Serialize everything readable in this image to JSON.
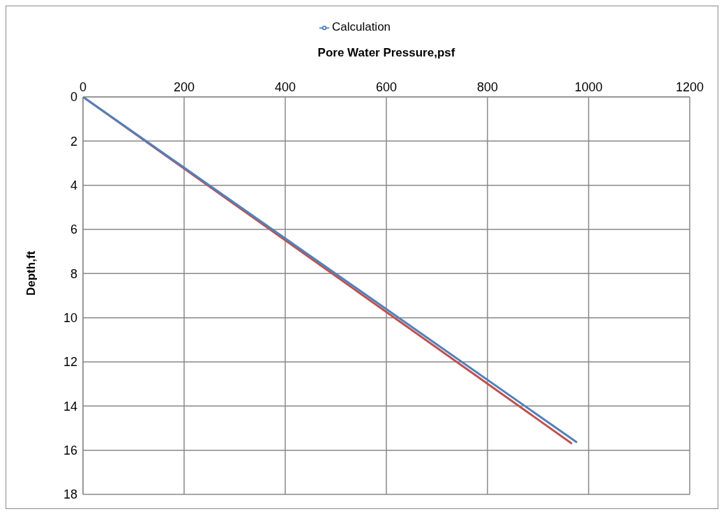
{
  "chart_data": {
    "type": "line",
    "xlabel": "Pore Water Pressure,psf",
    "ylabel": "Depth,ft",
    "series": [
      {
        "color": "#c0504d",
        "x": [
          0,
          967
        ],
        "values": [
          0,
          15.7
        ]
      },
      {
        "name": "Calculation",
        "color": "#4f81bd",
        "x": [
          0,
          977
        ],
        "values": [
          0,
          15.65
        ]
      }
    ],
    "xlim": [
      0,
      1200
    ],
    "xticks": [
      0,
      200,
      400,
      600,
      800,
      1000,
      1200
    ],
    "ylim": [
      18,
      0
    ],
    "yticks": [
      0,
      2,
      4,
      6,
      8,
      10,
      12,
      14,
      16,
      18
    ],
    "grid": true,
    "legend": "top",
    "marker": "none",
    "line_style": "solid"
  }
}
